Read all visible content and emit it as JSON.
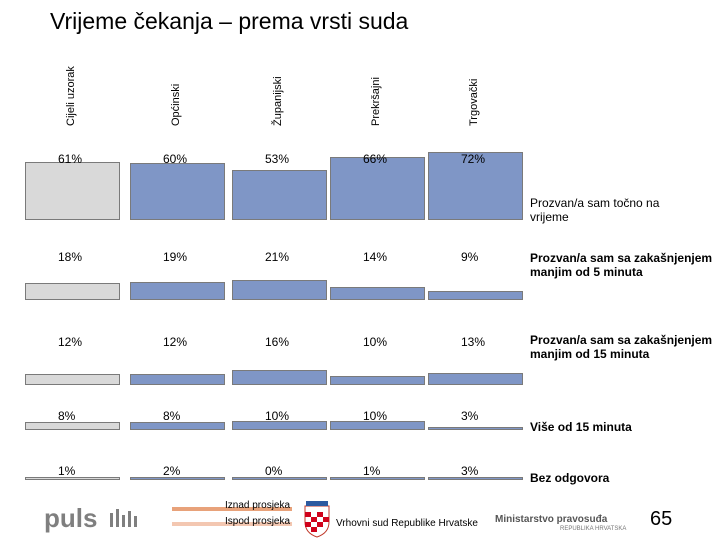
{
  "title": "Vrijeme čekanja – prema vrsti suda",
  "colors": {
    "total_fill": "#d9d9d9",
    "fill": "#7f96c6",
    "border": "#7a7a7a",
    "above_avg": "#e8a27a",
    "below_avg": "#f3c7b1"
  },
  "chart_data": {
    "type": "table",
    "columns": [
      "Cijeli uzorak",
      "Općinski",
      "Županijski",
      "Prekršajni",
      "Trgovački"
    ],
    "rows": [
      {
        "label": "Prozvan/a sam točno na vrijeme",
        "bold": false,
        "values": [
          61,
          60,
          53,
          66,
          72
        ],
        "labels": [
          "61%",
          "60%",
          "53%",
          "66%",
          "72%"
        ]
      },
      {
        "label": "Prozvan/a sam sa zakašnjenjem manjim od 5 minuta",
        "bold": true,
        "values": [
          18,
          19,
          21,
          14,
          9
        ],
        "labels": [
          "18%",
          "19%",
          "21%",
          "14%",
          "9%"
        ]
      },
      {
        "label": "Prozvan/a sam sa zakašnjenjem manjim od 15 minuta",
        "bold": true,
        "values": [
          12,
          12,
          16,
          10,
          13
        ],
        "labels": [
          "12%",
          "12%",
          "16%",
          "10%",
          "13%"
        ]
      },
      {
        "label": "Više od 15 minuta",
        "bold": true,
        "values": [
          8,
          8,
          10,
          10,
          3
        ],
        "labels": [
          "8%",
          "8%",
          "10%",
          "10%",
          "3%"
        ]
      },
      {
        "label": "Bez odgovora",
        "bold": true,
        "values": [
          1,
          2,
          0,
          1,
          3
        ],
        "labels": [
          "1%",
          "2%",
          "0%",
          "1%",
          "3%"
        ]
      }
    ]
  },
  "legend": {
    "above": "Iznad prosjeka",
    "below": "Ispod prosjeka"
  },
  "footer": {
    "logo": "puls",
    "court": "Vrhovni sud Republike Hrvatske",
    "ministry": "Ministarstvo pravosuđa",
    "ministry_sub": "REPUBLIKA HRVATSKA",
    "page": "65"
  }
}
